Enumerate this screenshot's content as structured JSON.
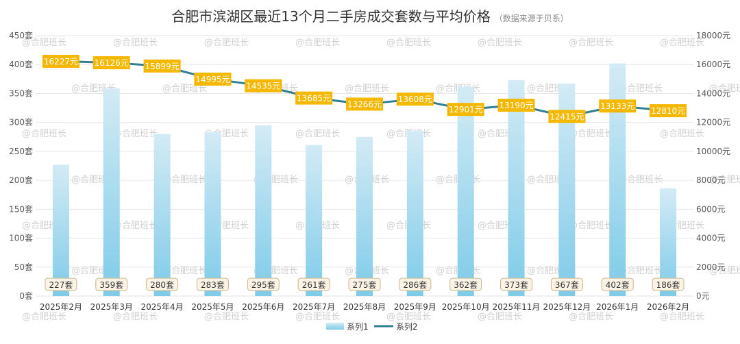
{
  "chart_data": {
    "type": "bar+line",
    "title": "合肥市滨湖区最近13个月二手房成交套数与平均价格",
    "subtitle": "（数据来源于贝系）",
    "categories": [
      "2025年2月",
      "2025年3月",
      "2025年4月",
      "2025年5月",
      "2025年6月",
      "2025年7月",
      "2025年8月",
      "2025年9月",
      "2025年10月",
      "2025年11月",
      "2025年12月",
      "2026年1月",
      "2026年2月"
    ],
    "series": [
      {
        "name": "系列1",
        "type": "bar",
        "axis": "left",
        "unit": "套",
        "values": [
          227,
          359,
          280,
          283,
          295,
          261,
          275,
          286,
          362,
          373,
          367,
          402,
          186
        ],
        "labels": [
          "227套",
          "359套",
          "280套",
          "283套",
          "295套",
          "261套",
          "275套",
          "286套",
          "362套",
          "373套",
          "367套",
          "402套",
          "186套"
        ]
      },
      {
        "name": "系列2",
        "type": "line",
        "axis": "right",
        "unit": "元",
        "values": [
          16227,
          16126,
          15899,
          14995,
          14535,
          13685,
          13266,
          13608,
          12901,
          13190,
          12415,
          13133,
          12810
        ],
        "labels": [
          "16227元",
          "16126元",
          "15899元",
          "14995元",
          "14535元",
          "13685元",
          "13266元",
          "13608元",
          "12901元",
          "13190元",
          "12415元",
          "13133元",
          "12810元"
        ]
      }
    ],
    "yleft": {
      "range": [
        0,
        450
      ],
      "ticks": [
        "0套",
        "50套",
        "100套",
        "150套",
        "200套",
        "250套",
        "300套",
        "350套",
        "400套",
        "450套"
      ]
    },
    "yright": {
      "range": [
        0,
        18000
      ],
      "ticks": [
        "0元",
        "2000元",
        "4000元",
        "6000元",
        "8000元",
        "10000元",
        "12000元",
        "14000元",
        "16000元",
        "18000元"
      ]
    },
    "grid": true,
    "legend": "bottom-center",
    "watermark": "@合肥班长"
  },
  "colors": {
    "bar_top": "#d3ebf5",
    "bar_bottom": "#7ecbe8",
    "line": "#2e7f96",
    "label_bg": "#f5b800",
    "bar_label_bg": "#fbf3e6",
    "bar_label_border": "#c9b48a",
    "grid": "#e6e6e6",
    "watermark": "#d0d0d0"
  }
}
